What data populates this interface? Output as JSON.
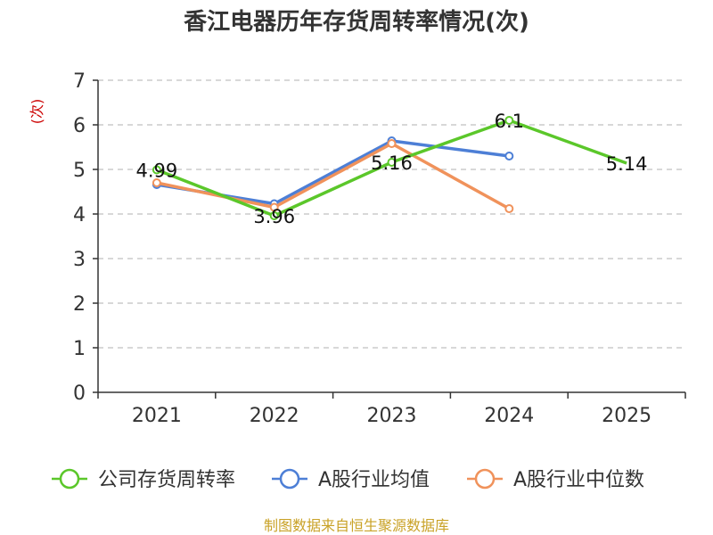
{
  "chart_data": {
    "type": "line",
    "title": "香江电器历年存货周转率情况(次)",
    "ylabel": "(次)",
    "xlabel": "",
    "categories": [
      "2021",
      "2022",
      "2023",
      "2024",
      "2025"
    ],
    "ylim": [
      0,
      7
    ],
    "yticks": [
      "0",
      "1",
      "2",
      "3",
      "4",
      "5",
      "6",
      "7"
    ],
    "grid": true,
    "legend_position": "bottom",
    "series": [
      {
        "name": "公司存货周转率",
        "color": "#5bc72a",
        "values": [
          4.99,
          3.96,
          5.16,
          6.1,
          5.14
        ],
        "labels": [
          "4.99",
          "3.96",
          "5.16",
          "6.1",
          "5.14"
        ],
        "markers": [
          true,
          true,
          true,
          true,
          false
        ]
      },
      {
        "name": "A股行业均值",
        "color": "#4d7fd6",
        "values": [
          4.66,
          4.23,
          5.64,
          5.3,
          null
        ],
        "labels": null,
        "markers": [
          true,
          true,
          true,
          true,
          false
        ]
      },
      {
        "name": "A股行业中位数",
        "color": "#f0925b",
        "values": [
          4.7,
          4.15,
          5.58,
          4.12,
          null
        ],
        "labels": null,
        "markers": [
          true,
          true,
          true,
          true,
          false
        ]
      }
    ],
    "label_color": "#cc0000",
    "axis_color": "#333333",
    "grid_color": "#cccccc"
  },
  "source": {
    "text": "制图数据来自恒生聚源数据库",
    "color": "#c9a227"
  }
}
